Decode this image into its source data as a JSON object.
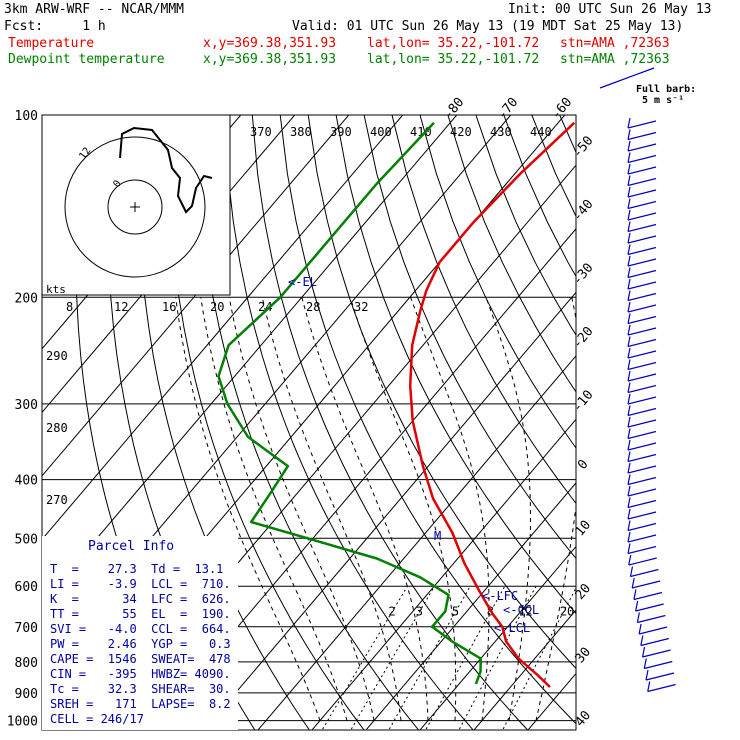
{
  "header": {
    "model": "3km ARW-WRF -- NCAR/MMM",
    "init": "Init: 00 UTC Sun 26 May 13",
    "fcst": "Fcst:     1 h",
    "valid": "Valid: 01 UTC Sun 26 May 13 (19 MDT Sat 25 May 13)",
    "temp_line": {
      "label": "Temperature",
      "xy": "x,y=369.38,351.93",
      "latlon": "lat,lon= 35.22,-101.72",
      "stn": "stn=AMA ,72363"
    },
    "dew_line": {
      "label": "Dewpoint temperature",
      "xy": "x,y=369.38,351.93",
      "latlon": "lat,lon= 35.22,-101.72",
      "stn": "stn=AMA ,72363"
    }
  },
  "barb_legend": {
    "line1": "Full barb:",
    "line2": "5 m s⁻¹"
  },
  "hodograph": {
    "speed_unit": "kts",
    "ring_labels": [
      "0",
      "12"
    ]
  },
  "markers": {
    "el": "<-EL",
    "lfc": "<-LFC",
    "ccl": "<-CCL",
    "lcl": "<-LCL",
    "m": "M"
  },
  "parcel_info": {
    "title": "Parcel Info",
    "rows": [
      "T  =    27.3  Td =  13.1",
      "LI =    -3.9  LCL =  710.",
      "K  =      34  LFC =  626.",
      "TT =      55  EL  =  190.",
      "SVI =   -4.0  CCL =  664.",
      "PW =    2.46  YGP =   0.3",
      "CAPE =  1546  SWEAT=  478",
      "CIN =   -395  HWBZ= 4090.",
      "Tc =    32.3  SHEAR=  30.",
      "SREH =   171  LAPSE=  8.2",
      "CELL = 246/17"
    ]
  },
  "chart_data": {
    "type": "line",
    "title": "",
    "xlabel": "",
    "ylabel": "",
    "pressure_levels": [
      100,
      200,
      300,
      400,
      500,
      600,
      700,
      800,
      900,
      1000
    ],
    "isotherm_labels": [
      -80,
      -70,
      -60,
      -50,
      -40,
      -30,
      -20,
      -10,
      0,
      10,
      20,
      30,
      40
    ],
    "theta_labels": [
      370,
      380,
      390,
      400,
      410,
      420,
      430,
      440,
      290,
      280,
      270
    ],
    "mixing_ratio_labels": [
      2,
      3,
      5,
      8,
      12,
      20
    ],
    "hodo_speed_labels": [
      8,
      12,
      16,
      20,
      24,
      28,
      32
    ],
    "series": [
      {
        "name": "Temperature",
        "color": "#e00000",
        "pressure": [
          103,
          125,
          150,
          175,
          195,
          210,
          240,
          280,
          320,
          380,
          430,
          490,
          550,
          610,
          665,
          700,
          740,
          790,
          840,
          880
        ],
        "temperature": [
          -57,
          -59,
          -60,
          -60,
          -58,
          -56,
          -52,
          -46,
          -40,
          -31,
          -24,
          -15,
          -8,
          -1,
          5,
          9,
          12,
          17,
          23,
          27.3
        ]
      },
      {
        "name": "Dewpoint temperature",
        "color": "#008000",
        "pressure": [
          103,
          130,
          160,
          200,
          240,
          270,
          300,
          340,
          380,
          420,
          470,
          500,
          540,
          580,
          620,
          660,
          700,
          740,
          790,
          830,
          870
        ],
        "temperature": [
          -83,
          -84,
          -84,
          -84,
          -86,
          -83,
          -77,
          -68,
          -56,
          -55,
          -54,
          -41,
          -25,
          -14,
          -6,
          -4,
          -4,
          2,
          10,
          12,
          13.1
        ]
      }
    ]
  }
}
